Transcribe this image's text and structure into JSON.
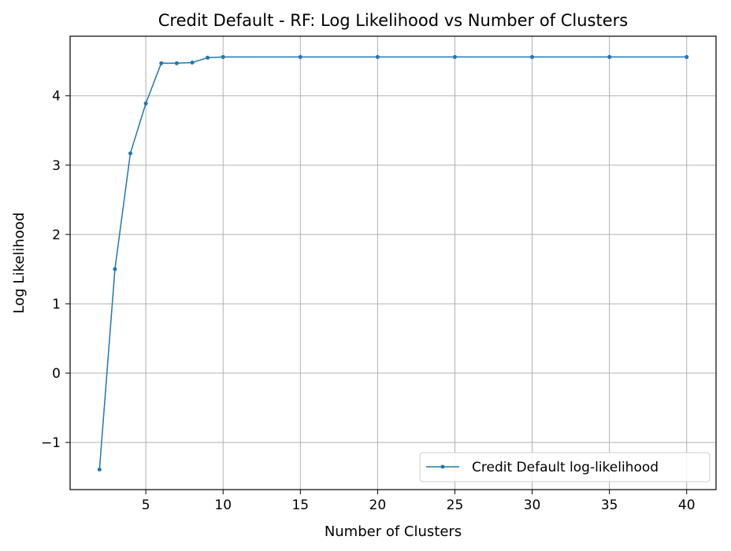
{
  "chart_data": {
    "type": "line",
    "title": "Credit Default - RF: Log Likelihood vs Number of Clusters",
    "xlabel": "Number of Clusters",
    "ylabel": "Log Likelihood",
    "xlim": [
      0.1,
      41.9
    ],
    "ylim": [
      -1.68,
      4.86
    ],
    "xticks": [
      5,
      10,
      15,
      20,
      25,
      30,
      35,
      40
    ],
    "xtick_labels": [
      "5",
      "10",
      "15",
      "20",
      "25",
      "30",
      "35",
      "40"
    ],
    "yticks": [
      -1,
      0,
      1,
      2,
      3,
      4
    ],
    "ytick_labels": [
      "−1",
      "0",
      "1",
      "2",
      "3",
      "4"
    ],
    "grid": true,
    "legend_position": "lower-right",
    "series": [
      {
        "name": "Credit Default log-likelihood",
        "color": "#1f77b4",
        "marker": "point",
        "x": [
          2,
          3,
          4,
          5,
          6,
          7,
          8,
          9,
          10,
          15,
          20,
          25,
          30,
          35,
          40
        ],
        "y": [
          -1.39,
          1.5,
          3.17,
          3.89,
          4.47,
          4.47,
          4.48,
          4.55,
          4.56,
          4.56,
          4.56,
          4.56,
          4.56,
          4.56,
          4.56
        ]
      }
    ]
  }
}
